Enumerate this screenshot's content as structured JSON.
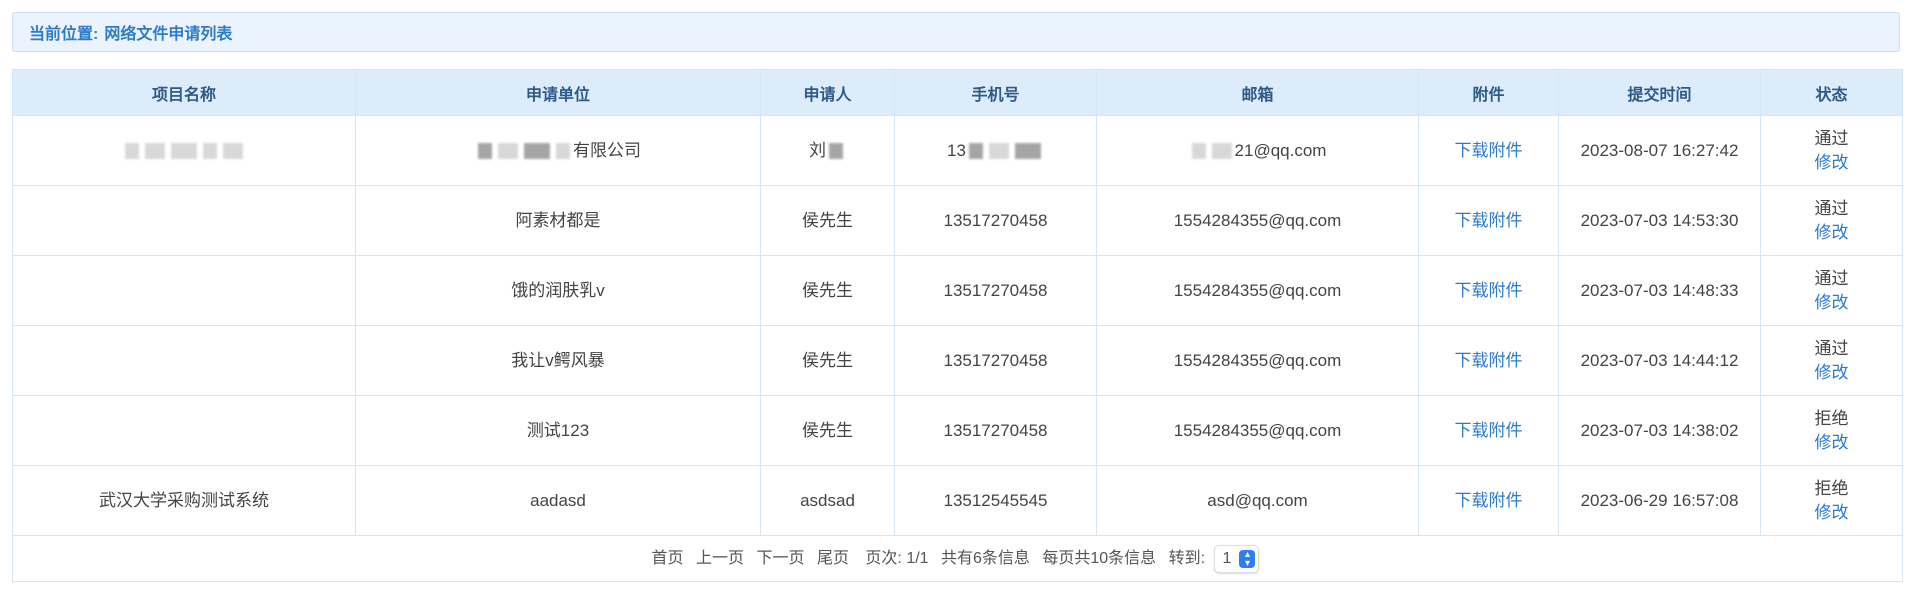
{
  "breadcrumb": {
    "label": "当前位置:",
    "page": "网络文件申请列表"
  },
  "columns": [
    "项目名称",
    "申请单位",
    "申请人",
    "手机号",
    "邮箱",
    "附件",
    "提交时间",
    "状态"
  ],
  "rows": [
    {
      "project": "",
      "unit": "有限公司",
      "applicant": "刘",
      "phone": "13",
      "email": "21@qq.com",
      "attachment": "下载附件",
      "time": "2023-08-07 16:27:42",
      "status": "通过",
      "action": "修改",
      "redacted": true
    },
    {
      "project": "",
      "unit": "阿素材都是",
      "applicant": "侯先生",
      "phone": "13517270458",
      "email": "1554284355@qq.com",
      "attachment": "下载附件",
      "time": "2023-07-03 14:53:30",
      "status": "通过",
      "action": "修改"
    },
    {
      "project": "",
      "unit": "饿的润肤乳v",
      "applicant": "侯先生",
      "phone": "13517270458",
      "email": "1554284355@qq.com",
      "attachment": "下载附件",
      "time": "2023-07-03 14:48:33",
      "status": "通过",
      "action": "修改"
    },
    {
      "project": "",
      "unit": "我让v鳄风暴",
      "applicant": "侯先生",
      "phone": "13517270458",
      "email": "1554284355@qq.com",
      "attachment": "下载附件",
      "time": "2023-07-03 14:44:12",
      "status": "通过",
      "action": "修改"
    },
    {
      "project": "",
      "unit": "测试123",
      "applicant": "侯先生",
      "phone": "13517270458",
      "email": "1554284355@qq.com",
      "attachment": "下载附件",
      "time": "2023-07-03 14:38:02",
      "status": "拒绝",
      "action": "修改"
    },
    {
      "project": "武汉大学采购测试系统",
      "unit": "aadasd",
      "applicant": "asdsad",
      "phone": "13512545545",
      "email": "asd@qq.com",
      "attachment": "下载附件",
      "time": "2023-06-29 16:57:08",
      "status": "拒绝",
      "action": "修改"
    }
  ],
  "pager": {
    "first": "首页",
    "prev": "上一页",
    "next": "下一页",
    "last": "尾页",
    "page_info": "页次: 1/1",
    "total": "共有6条信息",
    "per_page": "每页共10条信息",
    "goto": "转到:",
    "goto_value": "1"
  },
  "colors": {
    "accent": "#2d7bc9",
    "header_bg": "#ddecfb",
    "border": "#d3e6f8"
  }
}
